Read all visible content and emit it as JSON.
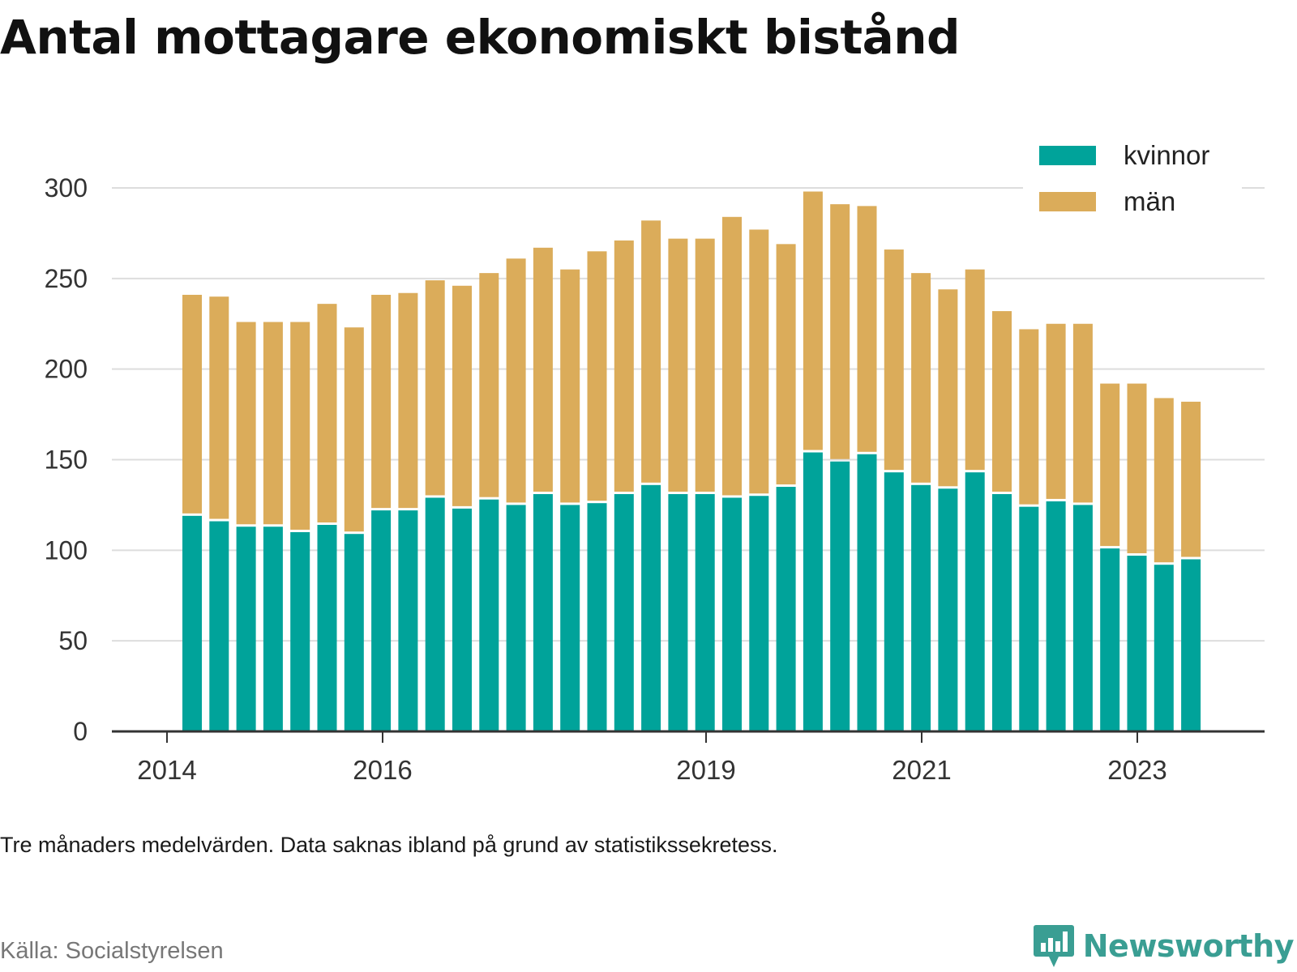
{
  "title": "Antal mottagare ekonomiskt bistånd",
  "note": "Tre månaders medelvärden. Data saknas ibland på grund av statistikssekretess.",
  "source": "Källa: Socialstyrelsen",
  "brand": {
    "name": "Newsworthy",
    "icon": "bar-chart-speech-bubble-icon",
    "color": "#3a9e93"
  },
  "chart_data": {
    "type": "bar",
    "stacked": true,
    "x_ticks": [
      "2014",
      "2016",
      "2019",
      "2021",
      "2023"
    ],
    "y_ticks": [
      "0",
      "50",
      "100",
      "150",
      "200",
      "250",
      "300"
    ],
    "ylim": [
      0,
      300
    ],
    "grid": true,
    "legend_position": "top-right",
    "series": [
      {
        "name": "kvinnor",
        "color": "#00a39a",
        "values": [
          119,
          116,
          113,
          113,
          110,
          114,
          109,
          122,
          122,
          129,
          123,
          128,
          125,
          131,
          125,
          126,
          131,
          136,
          131,
          131,
          129,
          130,
          135,
          154,
          149,
          153,
          143,
          136,
          134,
          143,
          131,
          124,
          127,
          125,
          101,
          97,
          92,
          95
        ]
      },
      {
        "name": "män",
        "color": "#dbac5a",
        "values": [
          122,
          124,
          113,
          113,
          116,
          122,
          114,
          119,
          120,
          120,
          123,
          125,
          136,
          136,
          130,
          139,
          140,
          146,
          141,
          141,
          155,
          147,
          134,
          144,
          142,
          137,
          123,
          117,
          110,
          112,
          101,
          98,
          98,
          100,
          91,
          95,
          92,
          87
        ]
      }
    ]
  }
}
